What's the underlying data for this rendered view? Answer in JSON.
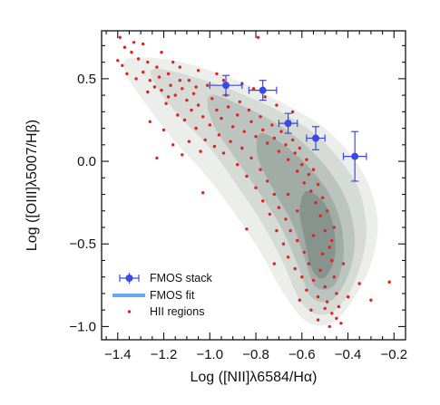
{
  "chart_data": {
    "type": "scatter",
    "xlabel": "Log ([NII]λ6584/Hα)",
    "ylabel": "Log ([OIII]λ5007/Hβ)",
    "xlim": [
      -1.47,
      -0.15
    ],
    "ylim": [
      -1.08,
      0.79
    ],
    "x_ticks": [
      -1.4,
      -1.2,
      -1.0,
      -0.8,
      -0.6,
      -0.4,
      -0.2
    ],
    "x_tick_labels": [
      "−1.4",
      "−1.2",
      "−1.0",
      "−0.8",
      "−0.6",
      "−0.4",
      "−0.2"
    ],
    "y_ticks": [
      -1.0,
      -0.5,
      0.0,
      0.5
    ],
    "y_tick_labels": [
      "−1.0",
      "−0.5",
      "0.0",
      "0.5"
    ],
    "grid": false,
    "legend_position": "bottom-left",
    "legend": [
      "FMOS stack",
      "FMOS fit",
      "HII regions"
    ],
    "colors": {
      "fmos_stack": "#3a49e6",
      "fmos_fit": "#6aa8ee",
      "hii_regions": "#e0231c",
      "contour_levels": [
        "#eceeec",
        "#d6dbd6",
        "#bcc4bf",
        "#a1aca6",
        "#87938d"
      ]
    },
    "density_contours": [
      {
        "level": 1,
        "points": [
          [
            -1.36,
            0.62
          ],
          [
            -1.2,
            0.62
          ],
          [
            -1.02,
            0.56
          ],
          [
            -0.85,
            0.47
          ],
          [
            -0.68,
            0.35
          ],
          [
            -0.52,
            0.22
          ],
          [
            -0.4,
            0.06
          ],
          [
            -0.31,
            -0.14
          ],
          [
            -0.27,
            -0.38
          ],
          [
            -0.3,
            -0.62
          ],
          [
            -0.38,
            -0.84
          ],
          [
            -0.47,
            -0.98
          ],
          [
            -0.58,
            -0.97
          ],
          [
            -0.68,
            -0.8
          ],
          [
            -0.78,
            -0.55
          ],
          [
            -0.9,
            -0.3
          ],
          [
            -1.02,
            -0.08
          ],
          [
            -1.15,
            0.12
          ],
          [
            -1.27,
            0.33
          ],
          [
            -1.36,
            0.52
          ]
        ]
      },
      {
        "level": 2,
        "points": [
          [
            -1.24,
            0.56
          ],
          [
            -1.02,
            0.49
          ],
          [
            -0.85,
            0.4
          ],
          [
            -0.68,
            0.29
          ],
          [
            -0.54,
            0.16
          ],
          [
            -0.43,
            0.0
          ],
          [
            -0.35,
            -0.18
          ],
          [
            -0.32,
            -0.42
          ],
          [
            -0.35,
            -0.65
          ],
          [
            -0.42,
            -0.85
          ],
          [
            -0.51,
            -0.93
          ],
          [
            -0.6,
            -0.86
          ],
          [
            -0.68,
            -0.62
          ],
          [
            -0.77,
            -0.38
          ],
          [
            -0.88,
            -0.15
          ],
          [
            -1.0,
            0.08
          ],
          [
            -1.13,
            0.27
          ],
          [
            -1.23,
            0.45
          ]
        ]
      },
      {
        "level": 3,
        "points": [
          [
            -1.0,
            0.4
          ],
          [
            -0.85,
            0.33
          ],
          [
            -0.7,
            0.22
          ],
          [
            -0.57,
            0.08
          ],
          [
            -0.47,
            -0.08
          ],
          [
            -0.4,
            -0.26
          ],
          [
            -0.37,
            -0.48
          ],
          [
            -0.4,
            -0.69
          ],
          [
            -0.47,
            -0.84
          ],
          [
            -0.56,
            -0.82
          ],
          [
            -0.62,
            -0.62
          ],
          [
            -0.69,
            -0.4
          ],
          [
            -0.79,
            -0.18
          ],
          [
            -0.9,
            0.04
          ],
          [
            -0.99,
            0.24
          ]
        ]
      },
      {
        "level": 4,
        "points": [
          [
            -0.78,
            0.17
          ],
          [
            -0.66,
            0.08
          ],
          [
            -0.56,
            -0.05
          ],
          [
            -0.48,
            -0.2
          ],
          [
            -0.43,
            -0.38
          ],
          [
            -0.42,
            -0.58
          ],
          [
            -0.46,
            -0.75
          ],
          [
            -0.54,
            -0.76
          ],
          [
            -0.59,
            -0.58
          ],
          [
            -0.64,
            -0.38
          ],
          [
            -0.72,
            -0.18
          ],
          [
            -0.79,
            0.02
          ]
        ]
      },
      {
        "level": 5,
        "points": [
          [
            -0.58,
            -0.18
          ],
          [
            -0.5,
            -0.26
          ],
          [
            -0.46,
            -0.42
          ],
          [
            -0.46,
            -0.6
          ],
          [
            -0.51,
            -0.71
          ],
          [
            -0.56,
            -0.64
          ],
          [
            -0.59,
            -0.46
          ],
          [
            -0.61,
            -0.3
          ]
        ]
      }
    ],
    "series": [
      {
        "name": "FMOS stack",
        "type": "errorbar",
        "points": [
          {
            "x": -0.93,
            "y": 0.46,
            "xerr": 0.07,
            "yerr": 0.06
          },
          {
            "x": -0.77,
            "y": 0.43,
            "xerr": 0.06,
            "yerr": 0.06
          },
          {
            "x": -0.66,
            "y": 0.23,
            "xerr": 0.04,
            "yerr": 0.06
          },
          {
            "x": -0.54,
            "y": 0.14,
            "xerr": 0.04,
            "yerr": 0.07
          },
          {
            "x": -0.37,
            "y": 0.03,
            "xerr": 0.05,
            "yerr": 0.15
          }
        ]
      },
      {
        "name": "HII regions",
        "type": "scatter",
        "points": [
          [
            -1.39,
            0.75
          ],
          [
            -1.33,
            0.72
          ],
          [
            -1.37,
            0.69
          ],
          [
            -1.34,
            0.66
          ],
          [
            -1.4,
            0.61
          ],
          [
            -1.38,
            0.58
          ],
          [
            -1.36,
            0.53
          ],
          [
            -1.31,
            0.62
          ],
          [
            -1.27,
            0.6
          ],
          [
            -1.29,
            0.54
          ],
          [
            -1.26,
            0.49
          ],
          [
            -1.23,
            0.57
          ],
          [
            -1.22,
            0.51
          ],
          [
            -1.24,
            0.45
          ],
          [
            -1.21,
            0.43
          ],
          [
            -1.18,
            0.53
          ],
          [
            -1.17,
            0.46
          ],
          [
            -1.15,
            0.4
          ],
          [
            -1.19,
            0.35
          ],
          [
            -1.13,
            0.49
          ],
          [
            -1.12,
            0.44
          ],
          [
            -1.1,
            0.37
          ],
          [
            -1.08,
            0.31
          ],
          [
            -1.14,
            0.28
          ],
          [
            -1.11,
            0.25
          ],
          [
            -1.07,
            0.41
          ],
          [
            -1.05,
            0.34
          ],
          [
            -1.03,
            0.27
          ],
          [
            -1.06,
            0.2
          ],
          [
            -1.01,
            0.46
          ],
          [
            -0.99,
            0.38
          ],
          [
            -0.97,
            0.31
          ],
          [
            -1.0,
            0.22
          ],
          [
            -0.95,
            0.26
          ],
          [
            -0.93,
            0.4
          ],
          [
            -0.92,
            0.33
          ],
          [
            -0.9,
            0.21
          ],
          [
            -0.88,
            0.28
          ],
          [
            -0.87,
            0.36
          ],
          [
            -0.85,
            0.18
          ],
          [
            -0.83,
            0.31
          ],
          [
            -0.82,
            0.24
          ],
          [
            -0.8,
            0.15
          ],
          [
            -0.78,
            0.27
          ],
          [
            -0.77,
            0.19
          ],
          [
            -0.75,
            0.11
          ],
          [
            -0.73,
            0.22
          ],
          [
            -0.72,
            0.14
          ],
          [
            -0.7,
            0.06
          ],
          [
            -0.69,
            0.18
          ],
          [
            -0.67,
            0.1
          ],
          [
            -0.66,
            0.01
          ],
          [
            -0.64,
            0.13
          ],
          [
            -0.63,
            0.05
          ],
          [
            -0.62,
            -0.06
          ],
          [
            -0.61,
            0.08
          ],
          [
            -0.6,
            -0.02
          ],
          [
            -0.59,
            -0.13
          ],
          [
            -0.58,
            0.01
          ],
          [
            -0.57,
            -0.08
          ],
          [
            -0.56,
            -0.18
          ],
          [
            -0.55,
            -0.05
          ],
          [
            -0.54,
            -0.25
          ],
          [
            -0.53,
            -0.14
          ],
          [
            -0.52,
            -0.33
          ],
          [
            -0.51,
            -0.22
          ],
          [
            -0.5,
            -0.42
          ],
          [
            -0.49,
            -0.3
          ],
          [
            -0.48,
            -0.52
          ],
          [
            -0.47,
            -0.6
          ],
          [
            -0.46,
            -0.7
          ],
          [
            -0.46,
            -0.4
          ],
          [
            -0.45,
            -0.8
          ],
          [
            -0.44,
            -0.88
          ],
          [
            -0.45,
            -0.95
          ],
          [
            -0.47,
            -0.92
          ],
          [
            -0.49,
            -0.85
          ],
          [
            -0.5,
            -0.76
          ],
          [
            -0.52,
            -0.66
          ],
          [
            -0.53,
            -0.82
          ],
          [
            -0.55,
            -0.72
          ],
          [
            -0.56,
            -0.9
          ],
          [
            -0.57,
            -0.62
          ],
          [
            -0.58,
            -0.78
          ],
          [
            -0.59,
            -0.55
          ],
          [
            -0.6,
            -0.7
          ],
          [
            -0.61,
            -0.84
          ],
          [
            -0.62,
            -0.48
          ],
          [
            -0.63,
            -0.65
          ],
          [
            -0.65,
            -0.42
          ],
          [
            -0.66,
            -0.58
          ],
          [
            -0.67,
            -0.35
          ],
          [
            -0.68,
            -0.5
          ],
          [
            -0.7,
            -0.28
          ],
          [
            -0.71,
            -0.42
          ],
          [
            -0.72,
            -0.2
          ],
          [
            -0.74,
            -0.32
          ],
          [
            -0.75,
            -0.12
          ],
          [
            -0.77,
            -0.24
          ],
          [
            -0.78,
            -0.05
          ],
          [
            -0.8,
            -0.16
          ],
          [
            -0.82,
            0.02
          ],
          [
            -0.84,
            -0.09
          ],
          [
            -0.86,
            0.08
          ],
          [
            -0.88,
            -0.02
          ],
          [
            -0.91,
            0.12
          ],
          [
            -0.94,
            0.05
          ],
          [
            -0.96,
            0.16
          ],
          [
            -0.98,
            0.09
          ],
          [
            -1.02,
            0.13
          ],
          [
            -1.04,
            0.06
          ],
          [
            -1.09,
            0.12
          ],
          [
            -1.12,
            0.04
          ],
          [
            -1.16,
            0.1
          ],
          [
            -1.2,
            0.19
          ],
          [
            -1.23,
            0.02
          ],
          [
            -1.26,
            0.24
          ],
          [
            -0.79,
            0.75
          ],
          [
            -1.03,
            -0.19
          ],
          [
            -0.84,
            -0.41
          ],
          [
            -0.72,
            -0.62
          ],
          [
            -0.66,
            -0.2
          ],
          [
            -0.62,
            -0.3
          ],
          [
            -0.55,
            -0.45
          ],
          [
            -0.51,
            -0.56
          ],
          [
            -0.47,
            -0.48
          ],
          [
            -0.42,
            -0.62
          ],
          [
            -0.4,
            -0.82
          ],
          [
            -0.43,
            -0.98
          ],
          [
            -0.48,
            -1.0
          ],
          [
            -0.53,
            -0.96
          ],
          [
            -0.5,
            -0.89
          ],
          [
            -0.22,
            -0.73
          ],
          [
            -0.3,
            -0.84
          ],
          [
            -0.35,
            -0.74
          ],
          [
            -0.64,
            0.3
          ],
          [
            -0.71,
            0.34
          ],
          [
            -0.76,
            0.39
          ],
          [
            -0.81,
            0.44
          ],
          [
            -0.86,
            0.47
          ],
          [
            -0.97,
            0.53
          ],
          [
            -1.05,
            0.55
          ],
          [
            -1.16,
            0.6
          ],
          [
            -1.21,
            0.66
          ],
          [
            -1.29,
            0.71
          ],
          [
            -1.09,
            0.49
          ],
          [
            -1.13,
            0.57
          ],
          [
            -0.94,
            0.49
          ],
          [
            -1.06,
            0.45
          ],
          [
            -1.18,
            0.39
          ],
          [
            -1.27,
            0.42
          ],
          [
            -1.32,
            0.5
          ]
        ]
      },
      {
        "name": "FMOS fit",
        "type": "line",
        "points": []
      }
    ]
  }
}
